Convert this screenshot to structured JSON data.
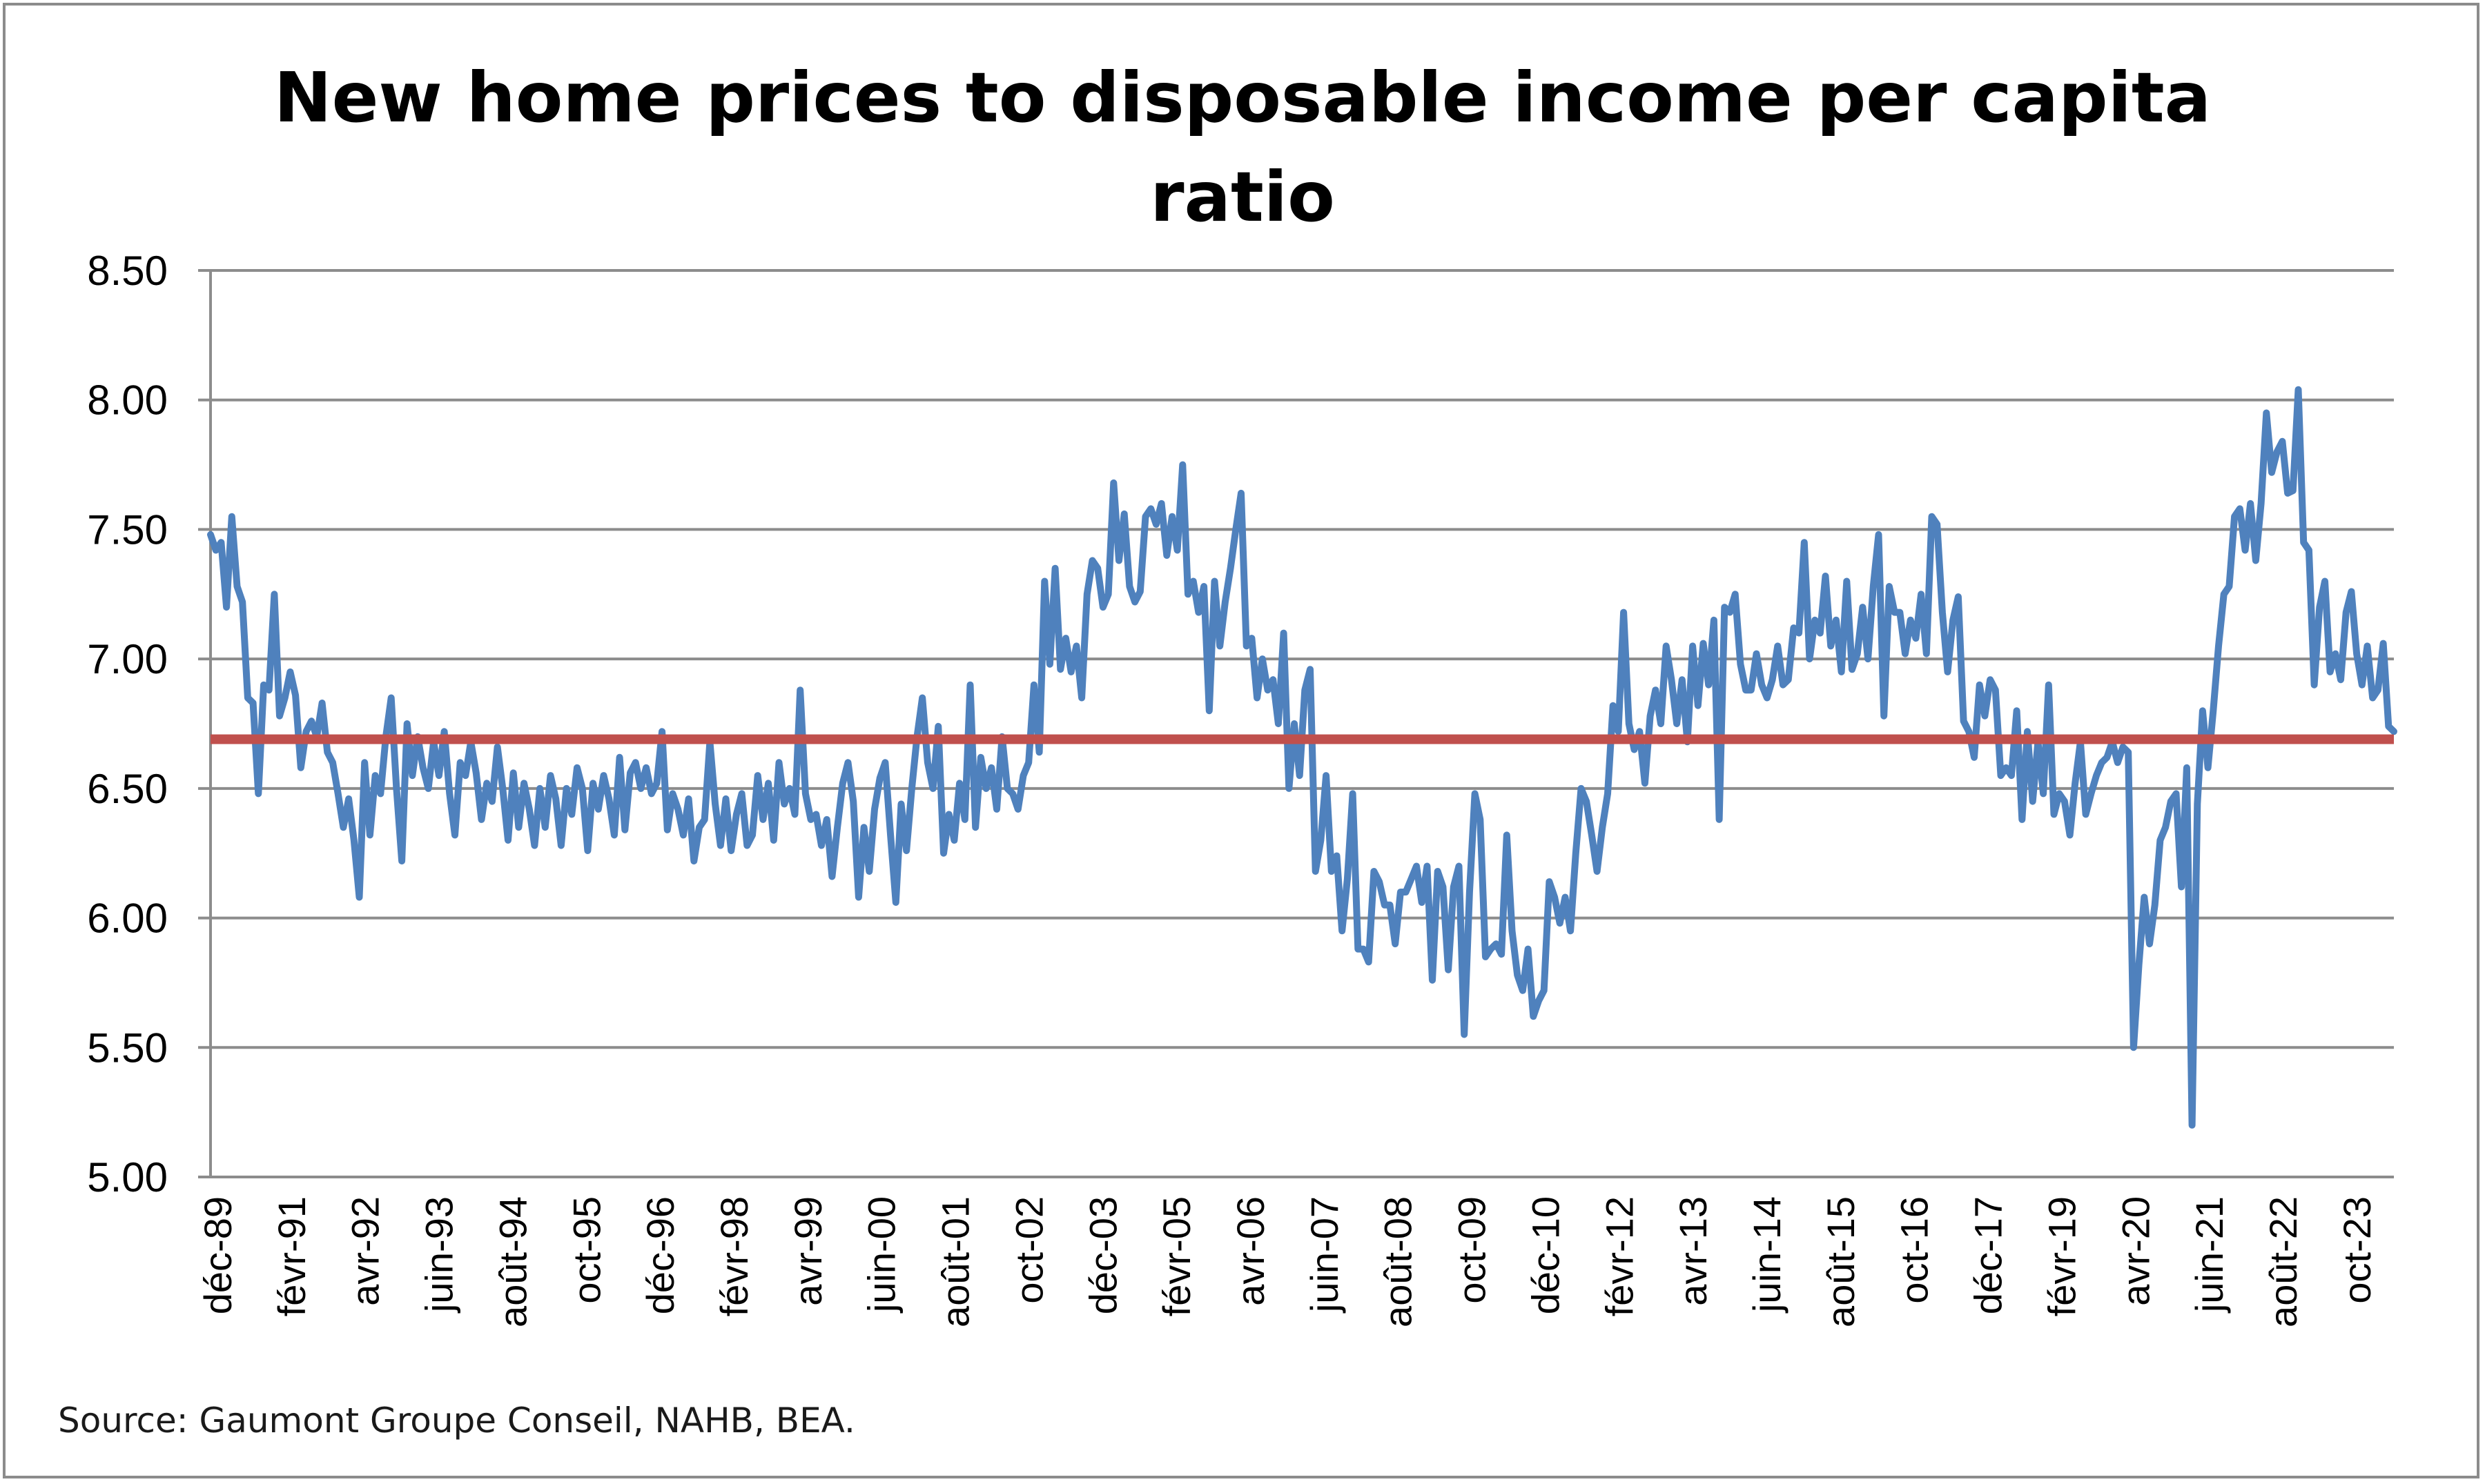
{
  "chart_data": {
    "type": "line",
    "title": "New home prices to disposable income per capita ratio",
    "xlabel": "",
    "ylabel": "",
    "ylim": [
      5.0,
      8.5
    ],
    "yticks": [
      "5.00",
      "5.50",
      "6.00",
      "6.50",
      "7.00",
      "7.50",
      "8.00",
      "8.50"
    ],
    "grid": true,
    "legend": "none",
    "x_tick_labels": [
      "déc-89",
      "févr-91",
      "avr-92",
      "juin-93",
      "août-94",
      "oct-95",
      "déc-96",
      "févr-98",
      "avr-99",
      "juin-00",
      "août-01",
      "oct-02",
      "déc-03",
      "févr-05",
      "avr-06",
      "juin-07",
      "août-08",
      "oct-09",
      "déc-10",
      "févr-12",
      "avr-13",
      "juin-14",
      "août-15",
      "oct-16",
      "déc-17",
      "févr-19",
      "avr-20",
      "juin-21",
      "août-22",
      "oct-23"
    ],
    "x_start": "déc-89",
    "x_end": "mai-24",
    "series": [
      {
        "color": "#4f81bd",
        "values": [
          7.48,
          7.42,
          7.45,
          7.2,
          7.55,
          7.28,
          7.22,
          6.85,
          6.83,
          6.48,
          6.9,
          6.88,
          7.25,
          6.78,
          6.85,
          6.95,
          6.86,
          6.58,
          6.72,
          6.76,
          6.7,
          6.83,
          6.64,
          6.6,
          6.48,
          6.35,
          6.46,
          6.3,
          6.08,
          6.6,
          6.32,
          6.55,
          6.48,
          6.7,
          6.85,
          6.5,
          6.22,
          6.75,
          6.55,
          6.7,
          6.58,
          6.5,
          6.68,
          6.55,
          6.72,
          6.48,
          6.32,
          6.6,
          6.55,
          6.68,
          6.56,
          6.38,
          6.52,
          6.45,
          6.66,
          6.5,
          6.3,
          6.56,
          6.35,
          6.52,
          6.42,
          6.28,
          6.5,
          6.35,
          6.55,
          6.46,
          6.28,
          6.5,
          6.4,
          6.58,
          6.5,
          6.26,
          6.52,
          6.42,
          6.55,
          6.46,
          6.32,
          6.62,
          6.34,
          6.56,
          6.6,
          6.5,
          6.58,
          6.48,
          6.52,
          6.72,
          6.34,
          6.48,
          6.42,
          6.32,
          6.46,
          6.22,
          6.35,
          6.38,
          6.68,
          6.44,
          6.28,
          6.46,
          6.26,
          6.4,
          6.48,
          6.28,
          6.32,
          6.55,
          6.38,
          6.52,
          6.3,
          6.6,
          6.44,
          6.5,
          6.4,
          6.88,
          6.48,
          6.38,
          6.4,
          6.28,
          6.38,
          6.16,
          6.35,
          6.52,
          6.6,
          6.45,
          6.08,
          6.35,
          6.18,
          6.42,
          6.54,
          6.6,
          6.32,
          6.06,
          6.44,
          6.26,
          6.5,
          6.7,
          6.85,
          6.6,
          6.5,
          6.74,
          6.25,
          6.4,
          6.3,
          6.52,
          6.38,
          6.9,
          6.35,
          6.62,
          6.5,
          6.58,
          6.42,
          6.7,
          6.5,
          6.48,
          6.42,
          6.55,
          6.6,
          6.9,
          6.64,
          7.3,
          6.98,
          7.35,
          6.96,
          7.08,
          6.95,
          7.05,
          6.85,
          7.25,
          7.38,
          7.35,
          7.2,
          7.25,
          7.68,
          7.38,
          7.56,
          7.28,
          7.22,
          7.26,
          7.55,
          7.58,
          7.52,
          7.6,
          7.4,
          7.55,
          7.42,
          7.75,
          7.25,
          7.3,
          7.18,
          7.28,
          6.8,
          7.3,
          7.05,
          7.22,
          7.35,
          7.5,
          7.64,
          7.05,
          7.08,
          6.85,
          7.0,
          6.88,
          6.92,
          6.75,
          7.1,
          6.5,
          6.75,
          6.55,
          6.88,
          6.96,
          6.18,
          6.3,
          6.55,
          6.18,
          6.24,
          5.95,
          6.15,
          6.48,
          5.88,
          5.88,
          5.83,
          6.18,
          6.14,
          6.05,
          6.05,
          5.9,
          6.1,
          6.1,
          6.15,
          6.2,
          6.06,
          6.2,
          5.76,
          6.18,
          6.12,
          5.8,
          6.12,
          6.2,
          5.55,
          6.1,
          6.48,
          6.38,
          5.85,
          5.88,
          5.9,
          5.86,
          6.32,
          5.95,
          5.78,
          5.72,
          5.88,
          5.62,
          5.68,
          5.72,
          6.14,
          6.08,
          5.98,
          6.08,
          5.95,
          6.25,
          6.5,
          6.45,
          6.32,
          6.18,
          6.35,
          6.48,
          6.82,
          6.72,
          7.18,
          6.75,
          6.65,
          6.72,
          6.52,
          6.78,
          6.88,
          6.75,
          7.05,
          6.92,
          6.75,
          6.92,
          6.68,
          7.05,
          6.82,
          7.06,
          6.9,
          7.15,
          6.38,
          7.2,
          7.18,
          7.25,
          6.98,
          6.88,
          6.88,
          7.02,
          6.9,
          6.85,
          6.92,
          7.05,
          6.9,
          6.92,
          7.12,
          7.1,
          7.45,
          7.0,
          7.15,
          7.1,
          7.32,
          7.05,
          7.15,
          6.95,
          7.3,
          6.96,
          7.02,
          7.2,
          7.0,
          7.28,
          7.48,
          6.78,
          7.28,
          7.18,
          7.18,
          7.02,
          7.15,
          7.08,
          7.25,
          7.02,
          7.55,
          7.52,
          7.18,
          6.95,
          7.15,
          7.24,
          6.76,
          6.72,
          6.62,
          6.9,
          6.78,
          6.92,
          6.88,
          6.55,
          6.58,
          6.55,
          6.8,
          6.38,
          6.72,
          6.45,
          6.68,
          6.48,
          6.9,
          6.4,
          6.48,
          6.45,
          6.32,
          6.52,
          6.68,
          6.4,
          6.48,
          6.55,
          6.6,
          6.62,
          6.68,
          6.6,
          6.66,
          6.64,
          5.5,
          5.82,
          6.08,
          5.9,
          6.05,
          6.3,
          6.35,
          6.45,
          6.48,
          6.12,
          6.58,
          5.2,
          6.44,
          6.8,
          6.58,
          6.8,
          7.05,
          7.25,
          7.28,
          7.55,
          7.58,
          7.42,
          7.6,
          7.38,
          7.6,
          7.95,
          7.72,
          7.8,
          7.84,
          7.64,
          7.65,
          8.04,
          7.45,
          7.42,
          6.9,
          7.2,
          7.3,
          6.95,
          7.02,
          6.92,
          7.18,
          7.26,
          7.02,
          6.9,
          7.05,
          6.85,
          6.88,
          7.06,
          6.74,
          6.72
        ]
      },
      {
        "color": "#c0504d",
        "values": [
          6.69,
          6.69
        ]
      }
    ]
  },
  "source": "Source: Gaumont Groupe Conseil, NAHB, BEA."
}
